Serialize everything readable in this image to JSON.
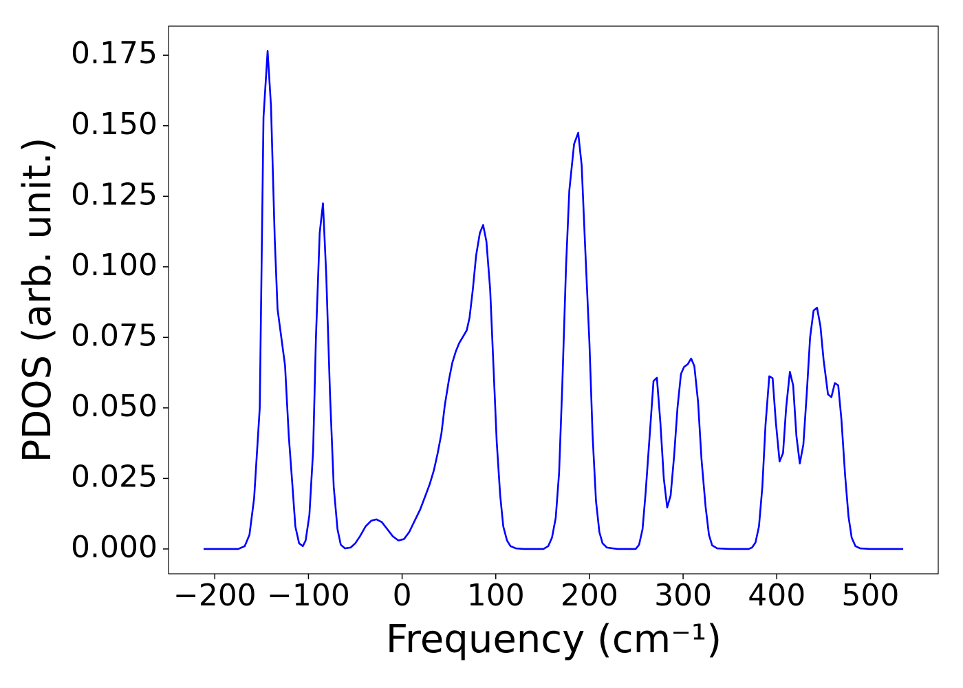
{
  "chart_data": {
    "type": "line",
    "xlabel": "Frequency (cm⁻¹)",
    "ylabel": "PDOS (arb. unit.)",
    "color": "#0000ff",
    "x": [
      -212,
      -190,
      -175,
      -168,
      -163,
      -158,
      -152,
      -148,
      -143.6,
      -140,
      -136,
      -133,
      -125,
      -121,
      -117,
      -114,
      -110,
      -106,
      -103,
      -99,
      -95,
      -92,
      -88,
      -84.5,
      -81,
      -77,
      -73,
      -69,
      -65.5,
      -61,
      -55,
      -50,
      -45,
      -39,
      -33,
      -27.5,
      -21.6,
      -15.8,
      -10,
      -4,
      2,
      7.6,
      13.4,
      19.3,
      25,
      29.5,
      34,
      38,
      42,
      45.6,
      50,
      53.6,
      57.3,
      61,
      64.6,
      69,
      72,
      75.5,
      79,
      83,
      86.5,
      90,
      94,
      97.5,
      101,
      104.7,
      108,
      112,
      115.7,
      121.5,
      130,
      151,
      156,
      160,
      164,
      167.6,
      171,
      175,
      178.5,
      183.6,
      188,
      191.7,
      195.3,
      200,
      203.4,
      207,
      210.6,
      214,
      218.6,
      230,
      249.4,
      253,
      256.7,
      260,
      264.7,
      268.4,
      272,
      275.7,
      279.4,
      283,
      286.7,
      290.4,
      294,
      297.7,
      301,
      305,
      308.6,
      312,
      316,
      319.6,
      324,
      327.6,
      331,
      336.5,
      350,
      370,
      373.6,
      377.3,
      381,
      384.6,
      388,
      392,
      395.6,
      399,
      403,
      406.7,
      410,
      414,
      417.5,
      421,
      424.6,
      428.4,
      432,
      435.6,
      439.3,
      443,
      446.6,
      450,
      454.7,
      458.3,
      462,
      465.6,
      469,
      473,
      476.6,
      480,
      484,
      489,
      500,
      535
    ],
    "values": [
      0,
      0,
      0,
      0.001,
      0.005,
      0.018,
      0.05,
      0.153,
      0.1765,
      0.157,
      0.11,
      0.085,
      0.065,
      0.04,
      0.022,
      0.008,
      0.002,
      0.001,
      0.003,
      0.012,
      0.035,
      0.075,
      0.112,
      0.1225,
      0.097,
      0.055,
      0.022,
      0.007,
      0.0015,
      0.0002,
      0.0005,
      0.002,
      0.0045,
      0.008,
      0.01,
      0.0105,
      0.0095,
      0.007,
      0.0045,
      0.003,
      0.0035,
      0.006,
      0.01,
      0.014,
      0.019,
      0.023,
      0.028,
      0.034,
      0.041,
      0.051,
      0.06,
      0.066,
      0.07,
      0.073,
      0.075,
      0.0775,
      0.082,
      0.092,
      0.104,
      0.112,
      0.1148,
      0.109,
      0.092,
      0.065,
      0.038,
      0.019,
      0.008,
      0.003,
      0.001,
      0.0002,
      0,
      0,
      0.001,
      0.004,
      0.011,
      0.027,
      0.058,
      0.1,
      0.127,
      0.1435,
      0.1475,
      0.136,
      0.108,
      0.073,
      0.04,
      0.017,
      0.006,
      0.002,
      0.0005,
      0,
      0,
      0.0015,
      0.007,
      0.02,
      0.042,
      0.0595,
      0.0607,
      0.045,
      0.025,
      0.0147,
      0.019,
      0.033,
      0.05,
      0.062,
      0.0645,
      0.0655,
      0.0675,
      0.0648,
      0.052,
      0.032,
      0.015,
      0.005,
      0.0013,
      0.0002,
      0,
      0,
      0.0005,
      0.0023,
      0.008,
      0.022,
      0.044,
      0.0612,
      0.0605,
      0.045,
      0.031,
      0.034,
      0.05,
      0.0628,
      0.058,
      0.04,
      0.0303,
      0.037,
      0.055,
      0.075,
      0.0845,
      0.0855,
      0.079,
      0.067,
      0.0548,
      0.0538,
      0.0588,
      0.058,
      0.046,
      0.026,
      0.0115,
      0.004,
      0.001,
      0.0002,
      0,
      0
    ],
    "xlim": [
      -249.4,
      572.4
    ],
    "ylim": [
      -0.0088,
      0.1853
    ],
    "xticks": [
      {
        "value": -200,
        "label": "−200"
      },
      {
        "value": -100,
        "label": "−100"
      },
      0,
      100,
      200,
      300,
      400,
      500
    ],
    "yticks": [
      {
        "value": 0,
        "label": "0.000"
      },
      {
        "value": 0.025,
        "label": "0.025"
      },
      {
        "value": 0.05,
        "label": "0.050"
      },
      {
        "value": 0.075,
        "label": "0.075"
      },
      {
        "value": 0.1,
        "label": "0.100"
      },
      {
        "value": 0.125,
        "label": "0.125"
      },
      {
        "value": 0.15,
        "label": "0.150"
      },
      {
        "value": 0.175,
        "label": "0.175"
      }
    ]
  }
}
